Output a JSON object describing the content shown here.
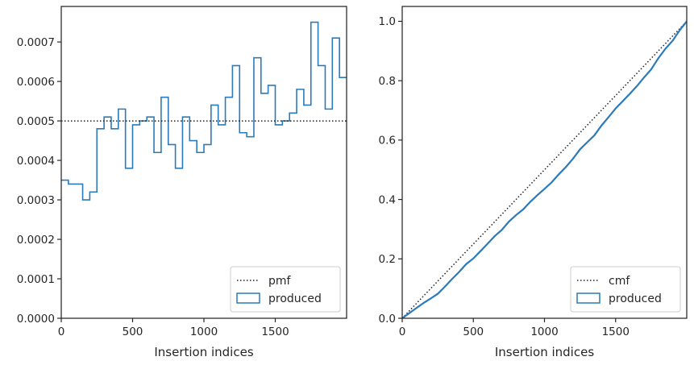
{
  "chart_data": [
    {
      "type": "histogram-step",
      "xlabel": "Insertion indices",
      "ylabel": "",
      "xlim": [
        0,
        2000
      ],
      "ylim": [
        0,
        0.00079
      ],
      "x_ticks": [
        0,
        500,
        1000,
        1500
      ],
      "x_tick_labels": [
        "0",
        "500",
        "1000",
        "1500"
      ],
      "y_ticks": [
        0,
        0.0001,
        0.0002,
        0.0003,
        0.0004,
        0.0005,
        0.0006,
        0.0007
      ],
      "y_tick_labels": [
        "0.0000",
        "0.0001",
        "0.0002",
        "0.0003",
        "0.0004",
        "0.0005",
        "0.0006",
        "0.0007"
      ],
      "grid": false,
      "legend_position": "lower-right",
      "bin_width": 50,
      "bin_edges_start": 0,
      "series": [
        {
          "name": "produced",
          "style": "step",
          "color": "#2b7bba",
          "values": [
            0.00035,
            0.00034,
            0.00034,
            0.0003,
            0.00032,
            0.00048,
            0.00051,
            0.00048,
            0.00053,
            0.00038,
            0.00049,
            0.0005,
            0.00051,
            0.00042,
            0.00056,
            0.00044,
            0.00038,
            0.00051,
            0.00045,
            0.00042,
            0.00044,
            0.00054,
            0.00049,
            0.00056,
            0.00064,
            0.00047,
            0.00046,
            0.00066,
            0.00057,
            0.00059,
            0.00049,
            0.0005,
            0.00052,
            0.00058,
            0.00054,
            0.00075,
            0.00064,
            0.00053,
            0.00071,
            0.00061
          ]
        },
        {
          "name": "pmf",
          "style": "dotted",
          "color": "#222222",
          "x": [
            0,
            2000
          ],
          "y": [
            0.0005,
            0.0005
          ]
        }
      ],
      "legend": [
        "pmf",
        "produced"
      ]
    },
    {
      "type": "line",
      "xlabel": "Insertion indices",
      "ylabel": "",
      "xlim": [
        0,
        2000
      ],
      "ylim": [
        0,
        1.05
      ],
      "x_ticks": [
        0,
        500,
        1000,
        1500
      ],
      "x_tick_labels": [
        "0",
        "500",
        "1000",
        "1500"
      ],
      "y_ticks": [
        0,
        0.2,
        0.4,
        0.6,
        0.8,
        1.0
      ],
      "y_tick_labels": [
        "0.0",
        "0.2",
        "0.4",
        "0.6",
        "0.8",
        "1.0"
      ],
      "grid": false,
      "legend_position": "lower-right",
      "series": [
        {
          "name": "cmf",
          "style": "dotted",
          "color": "#222222",
          "x": [
            0,
            2000
          ],
          "y": [
            0,
            1.0
          ]
        },
        {
          "name": "produced",
          "style": "solid",
          "color": "#2b7bba",
          "x": [
            0,
            50,
            100,
            150,
            200,
            250,
            300,
            350,
            400,
            450,
            500,
            550,
            600,
            650,
            700,
            750,
            800,
            850,
            900,
            950,
            1000,
            1050,
            1100,
            1150,
            1200,
            1250,
            1300,
            1350,
            1400,
            1450,
            1500,
            1550,
            1600,
            1650,
            1700,
            1750,
            1800,
            1850,
            1900,
            1950,
            2000
          ],
          "y": [
            0,
            0.0175,
            0.0345,
            0.0515,
            0.0665,
            0.0825,
            0.1065,
            0.132,
            0.156,
            0.1825,
            0.2015,
            0.226,
            0.251,
            0.2765,
            0.2975,
            0.3255,
            0.3475,
            0.3665,
            0.392,
            0.4145,
            0.4355,
            0.4575,
            0.4845,
            0.509,
            0.537,
            0.569,
            0.5925,
            0.6155,
            0.6485,
            0.677,
            0.7065,
            0.731,
            0.756,
            0.782,
            0.811,
            0.838,
            0.8755,
            0.9075,
            0.934,
            0.9695,
            1.0
          ]
        }
      ],
      "legend": [
        "cmf",
        "produced"
      ]
    }
  ]
}
